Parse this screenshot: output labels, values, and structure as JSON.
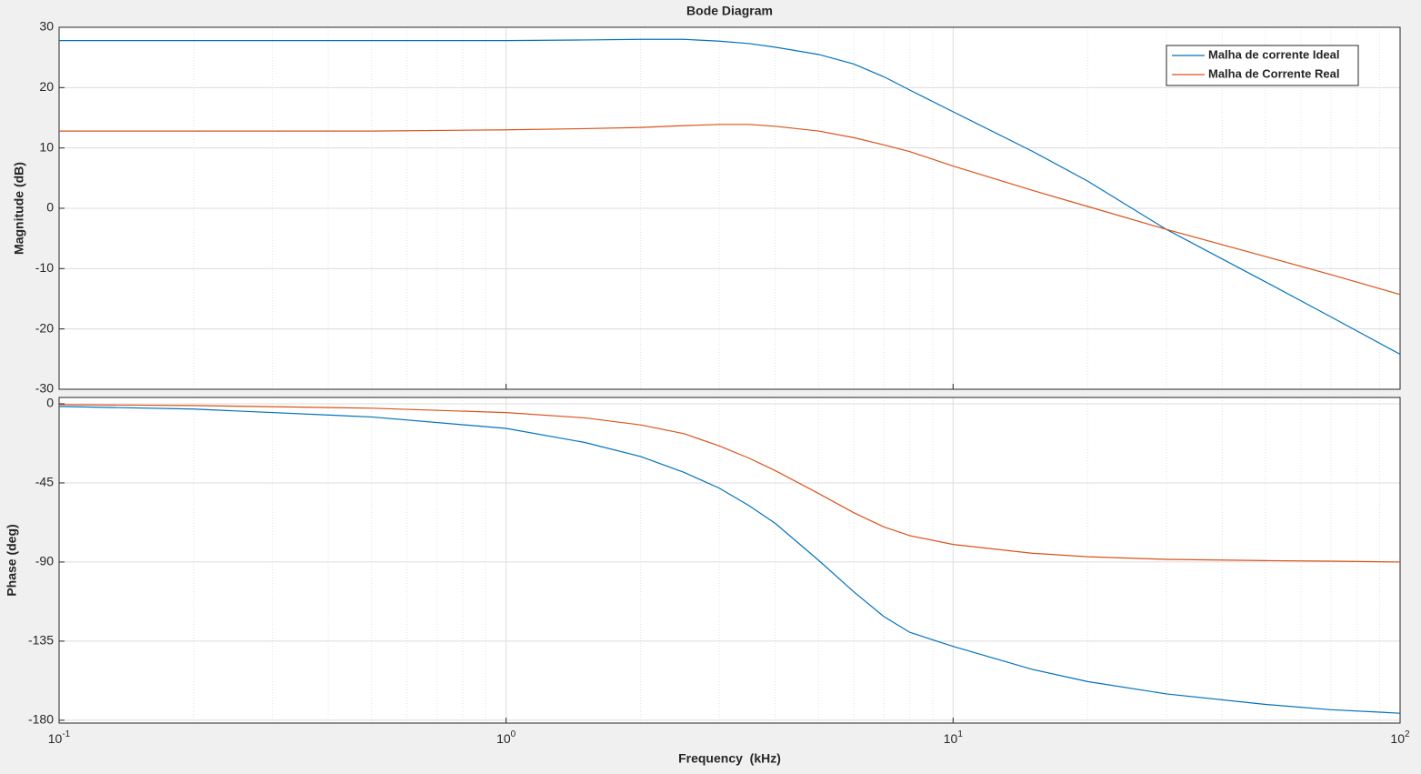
{
  "chart_data": [
    {
      "type": "line",
      "title": "Bode Diagram",
      "ylabel": "Magnitude (dB)",
      "x": [
        0.1,
        0.2,
        0.5,
        1,
        1.5,
        2,
        2.5,
        3,
        3.5,
        4,
        5,
        6,
        7,
        8,
        10,
        15,
        20,
        30,
        50,
        70,
        100
      ],
      "series": [
        {
          "name": "Malha de corrente Ideal",
          "color": "#0072bd",
          "values": [
            27.8,
            27.8,
            27.8,
            27.8,
            27.9,
            28,
            28,
            27.7,
            27.3,
            26.7,
            25.5,
            23.9,
            21.8,
            19.6,
            16,
            9.5,
            4.5,
            -3.5,
            -12.2,
            -18,
            -24.2
          ]
        },
        {
          "name": "Malha de Corrente Real",
          "color": "#d95319",
          "values": [
            12.8,
            12.8,
            12.8,
            13,
            13.2,
            13.4,
            13.7,
            13.9,
            13.9,
            13.6,
            12.8,
            11.7,
            10.5,
            9.4,
            7,
            3,
            0.3,
            -3.5,
            -8,
            -11,
            -14.3
          ]
        }
      ],
      "xlog": true,
      "xlim": [
        0.1,
        100
      ],
      "xticks": [
        0.1,
        1,
        10,
        100
      ],
      "ylim": [
        -30,
        30
      ],
      "yticks": [
        -30,
        -20,
        -10,
        0,
        10,
        20,
        30
      ],
      "grid": true,
      "legend": "upper right"
    },
    {
      "type": "line",
      "ylabel": "Phase (deg)",
      "xlabel": "Frequency  (kHz)",
      "x": [
        0.1,
        0.2,
        0.5,
        1,
        1.5,
        2,
        2.5,
        3,
        3.5,
        4,
        5,
        6,
        7,
        8,
        10,
        15,
        20,
        30,
        50,
        70,
        100
      ],
      "series": [
        {
          "color": "#0072bd",
          "values": [
            -1.5,
            -3,
            -7.5,
            -14,
            -22,
            -30,
            -39,
            -48,
            -58,
            -68,
            -89,
            -107,
            -121,
            -130,
            -138,
            -151,
            -158,
            -165,
            -171,
            -174,
            -176
          ]
        },
        {
          "color": "#d95319",
          "values": [
            -0.5,
            -1,
            -2.5,
            -5,
            -8,
            -12,
            -17,
            -24,
            -31,
            -38,
            -51,
            -62,
            -70,
            -75,
            -80,
            -85,
            -87,
            -88.5,
            -89.2,
            -89.5,
            -90
          ]
        }
      ],
      "xlog": true,
      "xlim": [
        0.1,
        100
      ],
      "xticks": [
        {
          "value": 0.1,
          "label": "10^-1"
        },
        {
          "value": 1,
          "label": "10^0"
        },
        {
          "value": 10,
          "label": "10^1"
        },
        {
          "value": 100,
          "label": "10^2"
        }
      ],
      "ylim": [
        -181.6,
        3.6
      ],
      "yticks": [
        -180,
        -135,
        -90,
        -45,
        0
      ],
      "grid": true
    }
  ]
}
